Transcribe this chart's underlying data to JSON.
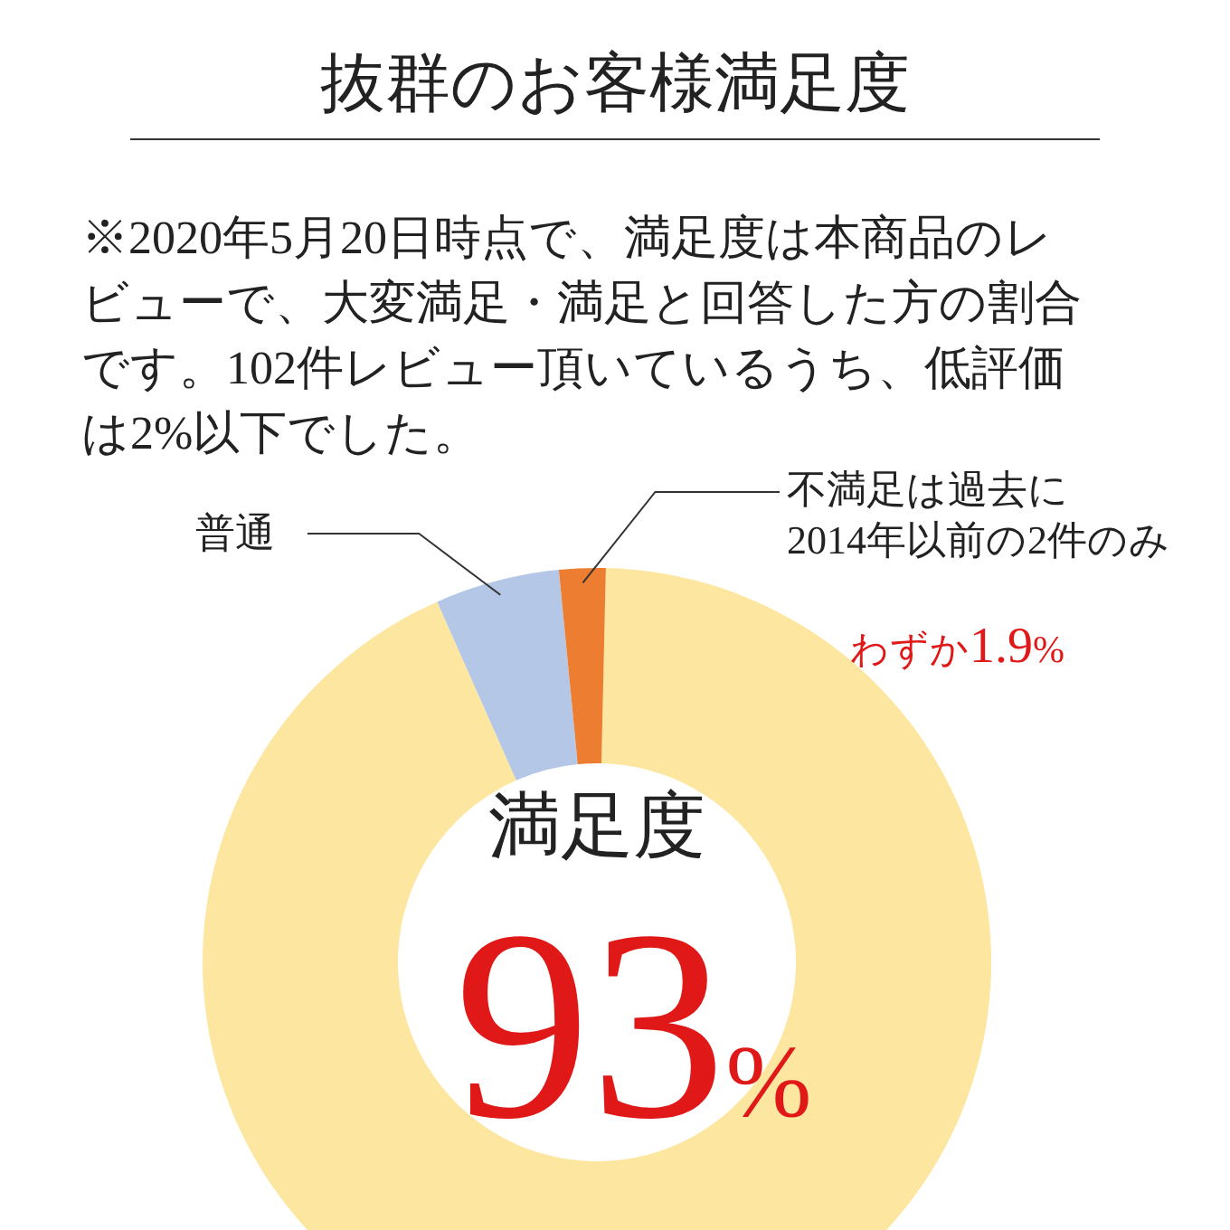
{
  "chart_data": {
    "type": "donut",
    "title": "抜群のお客様満足度",
    "annotations": [
      "※2020年5月20日時点で、満足度は本商品のレビューで、大変満足・満足と回答した方の割合です。102件レビュー頂いているうち、低評価は2%以下でした。"
    ],
    "categories": [
      "満足度",
      "普通",
      "不満足は過去に\n2014年以前の2件のみ"
    ],
    "values": [
      93,
      5.1,
      1.9
    ],
    "colors": [
      "#fde6a0",
      "#b4c7e7",
      "#ed7d31"
    ],
    "value_labels": [
      "93%",
      null,
      "わずか1.9%"
    ],
    "legend": false
  }
}
